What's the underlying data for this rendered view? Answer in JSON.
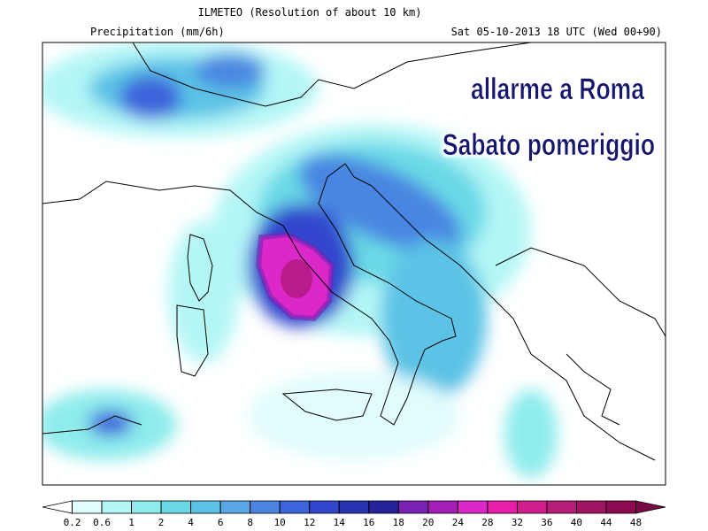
{
  "header": {
    "title": "ILMETEO (Resolution of about 10 km)",
    "variable": "Precipitation (mm/6h)",
    "valid_time": "Sat 05-10-2013 18 UTC (Wed 00+90)"
  },
  "overlay": {
    "lines": [
      "allarme a Roma",
      "Sabato pomeriggio"
    ]
  },
  "legend": {
    "ticks": [
      0.2,
      0.6,
      1,
      2,
      4,
      6,
      8,
      10,
      12,
      14,
      16,
      18,
      20,
      24,
      28,
      32,
      36,
      40,
      44,
      48
    ],
    "colors": [
      "#ffffff",
      "#e1fcfc",
      "#b4f6f6",
      "#8eecec",
      "#6ad9e6",
      "#5cc3e6",
      "#5aa6e6",
      "#4a86e1",
      "#3c64dc",
      "#3246cd",
      "#2a32b4",
      "#26229a",
      "#7a22b4",
      "#a21eb4",
      "#dc28c8",
      "#e61eaa",
      "#d21e8c",
      "#b41e78",
      "#a01464",
      "#8c0a50",
      "#780a46"
    ]
  }
}
